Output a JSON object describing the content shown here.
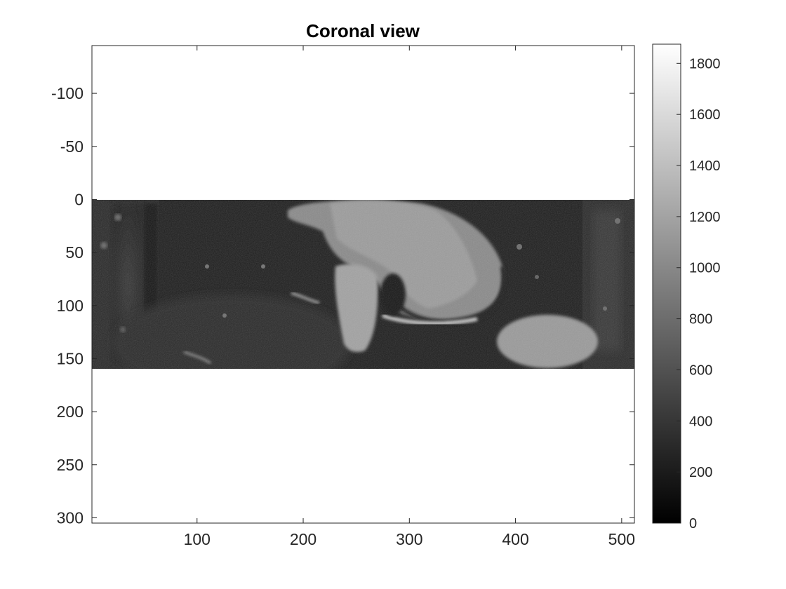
{
  "chart_data": {
    "type": "heatmap",
    "title": "Coronal view",
    "xlabel": "",
    "ylabel": "",
    "colormap": "gray",
    "x_axis": {
      "lim": [
        1,
        512
      ],
      "ticks": [
        100,
        200,
        300,
        400,
        500
      ],
      "tick_labels": [
        "100",
        "200",
        "300",
        "400",
        "500"
      ]
    },
    "y_axis": {
      "lim": [
        -145,
        305
      ],
      "reversed": true,
      "ticks": [
        -100,
        -50,
        0,
        50,
        100,
        150,
        200,
        250,
        300
      ],
      "tick_labels": [
        "-100",
        "-50",
        "0",
        "50",
        "100",
        "150",
        "200",
        "250",
        "300"
      ]
    },
    "image_extent": {
      "x": [
        1,
        512
      ],
      "y": [
        0,
        160
      ]
    },
    "colorbar": {
      "lim": [
        0,
        1875
      ],
      "ticks": [
        0,
        200,
        400,
        600,
        800,
        1000,
        1200,
        1400,
        1600,
        1800
      ],
      "tick_labels": [
        "0",
        "200",
        "400",
        "600",
        "800",
        "1000",
        "1200",
        "1400",
        "1600",
        "1800"
      ]
    },
    "background_color": "#ffffff",
    "axes_color": "#262626",
    "image_base_color": "#202020"
  }
}
